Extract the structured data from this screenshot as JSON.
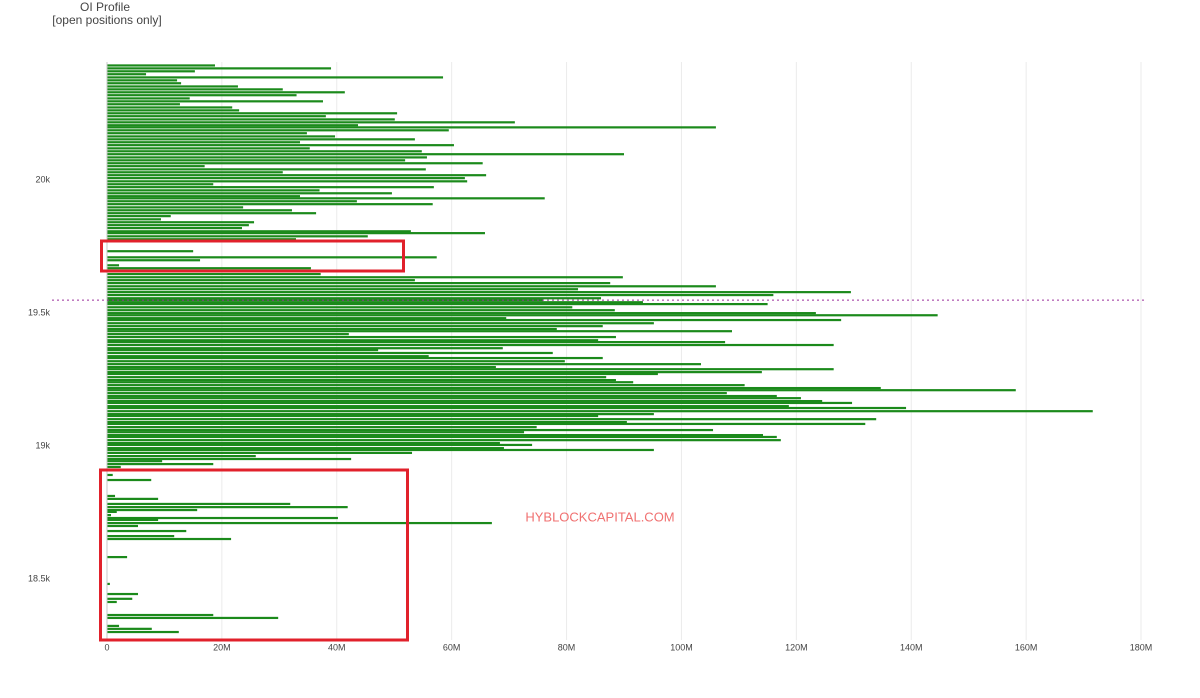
{
  "chart_data": {
    "type": "hbar",
    "title": "OI Profile",
    "subtitle": "[open positions only]",
    "watermark": "HYBLOCKCAPITAL.COM",
    "color": "#1b8a1b",
    "grid": true,
    "reference_line": {
      "value": 19549,
      "color": "#9b2f9b"
    },
    "xlim": [
      -2000000.0,
      182000000.0
    ],
    "xticks": [
      0,
      {
        "value": 20000000.0,
        "label": "20M"
      },
      {
        "value": 40000000.0,
        "label": "40M"
      },
      {
        "value": 60000000.0,
        "label": "60M"
      },
      {
        "value": 80000000.0,
        "label": "80M"
      },
      {
        "value": 100000000.0,
        "label": "100M"
      },
      {
        "value": 120000000.0,
        "label": "120M"
      },
      {
        "value": 140000000.0,
        "label": "140M"
      },
      {
        "value": 160000000.0,
        "label": "160M"
      },
      {
        "value": 180000000.0,
        "label": "180M"
      }
    ],
    "ylim": [
      18270,
      20445
    ],
    "yticks": [
      {
        "value": 18500,
        "label": "18.5k"
      },
      {
        "value": 19000,
        "label": "19k"
      },
      {
        "value": 19500,
        "label": "19.5k"
      },
      {
        "value": 20000,
        "label": "20k"
      }
    ],
    "y": [
      20432,
      20421,
      20410,
      20399,
      20387,
      20376,
      20365,
      20353,
      20342,
      20331,
      20320,
      20308,
      20297,
      20286,
      20274,
      20263,
      20252,
      20241,
      20229,
      20218,
      20207,
      20199,
      20188,
      20177,
      20165,
      20154,
      20143,
      20132,
      20120,
      20109,
      20098,
      20086,
      20075,
      20064,
      20053,
      20041,
      20030,
      20019,
      20008,
      19996,
      19985,
      19974,
      19962,
      19951,
      19940,
      19932,
      19921,
      19910,
      19898,
      19887,
      19876,
      19865,
      19853,
      19842,
      19831,
      19820,
      19808,
      19801,
      19789,
      19778,
      19771,
      19733,
      19710,
      19699,
      19680,
      19669,
      19658,
      19647,
      19635,
      19624,
      19613,
      19601,
      19590,
      19579,
      19568,
      19556,
      19549,
      19541,
      19534,
      19522,
      19511,
      19500,
      19492,
      19481,
      19474,
      19462,
      19451,
      19440,
      19432,
      19421,
      19410,
      19398,
      19391,
      19380,
      19368,
      19361,
      19350,
      19338,
      19331,
      19319,
      19308,
      19297,
      19289,
      19278,
      19271,
      19259,
      19248,
      19240,
      19229,
      19218,
      19210,
      19199,
      19188,
      19180,
      19169,
      19162,
      19150,
      19143,
      19131,
      19120,
      19113,
      19101,
      19090,
      19083,
      19071,
      19060,
      19052,
      19041,
      19034,
      19022,
      19011,
      19004,
      18992,
      18985,
      18974,
      18962,
      18951,
      18943,
      18932,
      18921,
      18891,
      18872,
      18812,
      18801,
      18782,
      18770,
      18759,
      18752,
      18740,
      18729,
      18722,
      18710,
      18699,
      18680,
      18661,
      18650,
      18582,
      18481,
      18443,
      18425,
      18413,
      18364,
      18353,
      18323,
      18312,
      18300
    ],
    "values": [
      18800000.0,
      39000000.0,
      15300000.0,
      6800000.0,
      58500000.0,
      12200000.0,
      12900000.0,
      22800000.0,
      30600000.0,
      41400000.0,
      33000000.0,
      14400000.0,
      37600000.0,
      12700000.0,
      21800000.0,
      23000000.0,
      50500000.0,
      38100000.0,
      50100000.0,
      71000000.0,
      43700000.0,
      106000000.0,
      59500000.0,
      34800000.0,
      39700000.0,
      53600000.0,
      33600000.0,
      60400000.0,
      35300000.0,
      54800000.0,
      90000000.0,
      55700000.0,
      51900000.0,
      65400000.0,
      17000000.0,
      55500000.0,
      30600000.0,
      66000000.0,
      62300000.0,
      62700000.0,
      18500000.0,
      56900000.0,
      37000000.0,
      49600000.0,
      33600000.0,
      76200000.0,
      43500000.0,
      56700000.0,
      23700000.0,
      32200000.0,
      36400000.0,
      11100000.0,
      9400000.0,
      25600000.0,
      24700000.0,
      23500000.0,
      52900000.0,
      65800000.0,
      45400000.0,
      32900000.0,
      25900000.0,
      15000000.0,
      57400000.0,
      16200000.0,
      2100000.0,
      35500000.0,
      47200000.0,
      37200000.0,
      89800000.0,
      53600000.0,
      87600000.0,
      106000000.0,
      82000000.0,
      129500000.0,
      116000000.0,
      86000000.0,
      75900000.0,
      93300000.0,
      115000000.0,
      81000000.0,
      88400000.0,
      123400000.0,
      144600000.0,
      69500000.0,
      127800000.0,
      95200000.0,
      86300000.0,
      78300000.0,
      108800000.0,
      42100000.0,
      88600000.0,
      85500000.0,
      107600000.0,
      126500000.0,
      68900000.0,
      47200000.0,
      77600000.0,
      56000000.0,
      86300000.0,
      79700000.0,
      103400000.0,
      67700000.0,
      126500000.0,
      114000000.0,
      95900000.0,
      86900000.0,
      88600000.0,
      91600000.0,
      111000000.0,
      134700000.0,
      158200000.0,
      107900000.0,
      116600000.0,
      120800000.0,
      124500000.0,
      129700000.0,
      118700000.0,
      139100000.0,
      171600000.0,
      95200000.0,
      85500000.0,
      133900000.0,
      90500000.0,
      132000000.0,
      74800000.0,
      105500000.0,
      72600000.0,
      114200000.0,
      116600000.0,
      117300000.0,
      68400000.0,
      74000000.0,
      69100000.0,
      95200000.0,
      53100000.0,
      25900000.0,
      42500000.0,
      9600000.0,
      18500000.0,
      2400000.0,
      1000000.0,
      7700000.0,
      1400000.0,
      8900000.0,
      31900000.0,
      41900000.0,
      15700000.0,
      1700000.0,
      700000.0,
      40200000.0,
      8900000.0,
      67000000.0,
      5400000.0,
      13800000.0,
      11700000.0,
      21600000.0,
      3500000.0,
      500000.0,
      5400000.0,
      4400000.0,
      1700000.0,
      18500000.0,
      29800000.0,
      2100000.0,
      7800000.0,
      12500000.0
    ]
  }
}
